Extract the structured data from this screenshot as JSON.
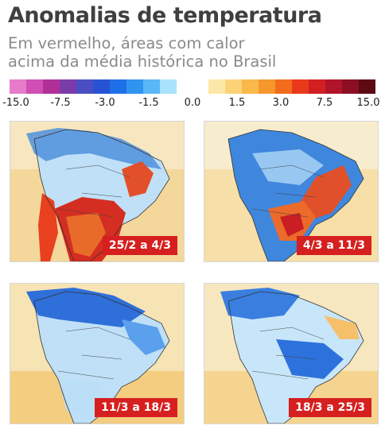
{
  "title": "Anomalias de temperatura",
  "subtitle_lines": [
    "Em vermelho, áreas com calor",
    "acima da média histórica no Brasil"
  ],
  "legend": {
    "cold_colors": [
      "#e67bc9",
      "#cf4fb4",
      "#b03098",
      "#7a3ca8",
      "#4a4ec0",
      "#2852d4",
      "#1e6fe8",
      "#2f93f0",
      "#59b7f6",
      "#a8e2fb"
    ],
    "warm_colors": [
      "#fde7a8",
      "#fbd277",
      "#f9b84a",
      "#f6972c",
      "#f26c1e",
      "#e8391b",
      "#d11f22",
      "#b0142b",
      "#8c0f24",
      "#5e0a14"
    ],
    "ticks": [
      "-15.0",
      "-7.5",
      "-3.0",
      "-1.5",
      "0.0",
      "1.5",
      "3.0",
      "7.5",
      "15.0"
    ]
  },
  "maps": [
    {
      "period": "25/2 a 4/3",
      "scheme": "warm-south"
    },
    {
      "period": "4/3 a 11/3",
      "scheme": "warm-east"
    },
    {
      "period": "11/3 a 18/3",
      "scheme": "cold"
    },
    {
      "period": "18/3 a 25/3",
      "scheme": "cold-warm-ne"
    }
  ]
}
